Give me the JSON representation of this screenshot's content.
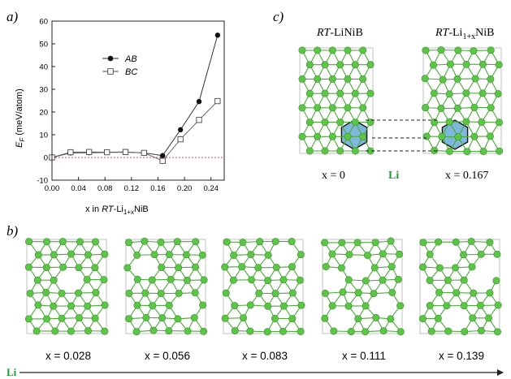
{
  "panel_labels": {
    "a": "a)",
    "b": "b)",
    "c": "c)"
  },
  "chart_data": {
    "type": "line",
    "xlabel": "x in RT-Li1+xNiB",
    "ylabel": "EF (meV/atom)",
    "xlim": [
      0.0,
      0.26
    ],
    "ylim": [
      -10,
      60
    ],
    "x_ticks": [
      "0.00",
      "0.04",
      "0.08",
      "0.12",
      "0.16",
      "0.20",
      "0.24"
    ],
    "y_ticks": [
      "-10",
      "0",
      "10",
      "20",
      "30",
      "40",
      "50",
      "60"
    ],
    "reference_line": 0,
    "legend_position": "upper-left",
    "series": [
      {
        "name": "AB",
        "marker": "filled-circle",
        "x": [
          0.0,
          0.028,
          0.056,
          0.083,
          0.111,
          0.139,
          0.167,
          0.194,
          0.222,
          0.25
        ],
        "y": [
          0,
          2.0,
          2.1,
          2.2,
          2.3,
          2.0,
          0.8,
          12.2,
          24.6,
          53.8
        ]
      },
      {
        "name": "BC",
        "marker": "open-square",
        "x": [
          0.0,
          0.028,
          0.056,
          0.083,
          0.111,
          0.139,
          0.167,
          0.194,
          0.222,
          0.25
        ],
        "y": [
          0,
          2.3,
          2.4,
          2.3,
          2.4,
          2.0,
          -1.5,
          8.0,
          16.5,
          24.8
        ]
      }
    ]
  },
  "panel_c": {
    "title_left": "RT-LiNiB",
    "title_right": "RT-Li1+xNiB",
    "caption_left": "x = 0",
    "caption_right": "x = 0.167",
    "li_label": "Li"
  },
  "panel_b": {
    "captions": [
      "x = 0.028",
      "x = 0.056",
      "x = 0.083",
      "x = 0.111",
      "x = 0.139"
    ],
    "arrow_label": "Li"
  },
  "colors": {
    "atom_fill": "#5cc447",
    "atom_stroke": "#3a8f2b",
    "bond": "#4aab38",
    "hexagon": "#7fb6dc",
    "li_text": "#22a038",
    "ref_line": "#e04040"
  }
}
